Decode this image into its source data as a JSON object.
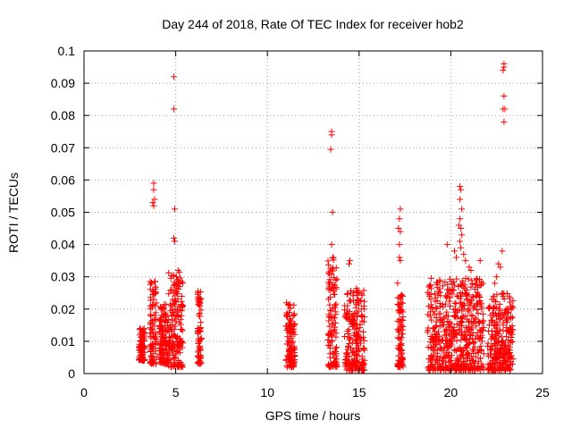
{
  "chart_data": {
    "type": "scatter",
    "title": "Day 244 of 2018, Rate Of TEC Index for receiver hob2",
    "xlabel": "GPS time / hours",
    "ylabel": "ROTI / TECUs",
    "xlim": [
      0,
      25
    ],
    "ylim": [
      0,
      0.1
    ],
    "xticks": [
      0,
      5,
      10,
      15,
      20,
      25
    ],
    "yticks": [
      0,
      0.01,
      0.02,
      0.03,
      0.04,
      0.05,
      0.06,
      0.07,
      0.08,
      0.09,
      0.1
    ],
    "xtick_labels": [
      "0",
      "5",
      "10",
      "15",
      "20",
      "25"
    ],
    "ytick_labels": [
      "0",
      "0.01",
      "0.02",
      "0.03",
      "0.04",
      "0.05",
      "0.06",
      "0.07",
      "0.08",
      "0.09",
      "0.1"
    ],
    "grid": true,
    "marker": "+",
    "color": "#ff0000",
    "clusters": [
      {
        "x_start": 3.0,
        "x_end": 3.3,
        "y_min": 0.004,
        "y_max": 0.014
      },
      {
        "x_start": 3.6,
        "x_end": 3.95,
        "y_min": 0.003,
        "y_max": 0.03
      },
      {
        "x_start": 4.1,
        "x_end": 4.6,
        "y_min": 0.003,
        "y_max": 0.022
      },
      {
        "x_start": 4.6,
        "x_end": 5.4,
        "y_min": 0.002,
        "y_max": 0.032
      },
      {
        "x_start": 6.2,
        "x_end": 6.4,
        "y_min": 0.003,
        "y_max": 0.026
      },
      {
        "x_start": 11.0,
        "x_end": 11.5,
        "y_min": 0.002,
        "y_max": 0.022
      },
      {
        "x_start": 13.3,
        "x_end": 13.8,
        "y_min": 0.002,
        "y_max": 0.036
      },
      {
        "x_start": 14.2,
        "x_end": 15.3,
        "y_min": 0.001,
        "y_max": 0.027
      },
      {
        "x_start": 17.1,
        "x_end": 17.4,
        "y_min": 0.002,
        "y_max": 0.025
      },
      {
        "x_start": 18.7,
        "x_end": 21.8,
        "y_min": 0.001,
        "y_max": 0.03
      },
      {
        "x_start": 22.0,
        "x_end": 23.4,
        "y_min": 0.001,
        "y_max": 0.025
      }
    ],
    "outliers": [
      {
        "x": 3.8,
        "y": 0.059
      },
      {
        "x": 3.8,
        "y": 0.057
      },
      {
        "x": 3.85,
        "y": 0.054
      },
      {
        "x": 3.8,
        "y": 0.052
      },
      {
        "x": 3.75,
        "y": 0.053
      },
      {
        "x": 4.9,
        "y": 0.092
      },
      {
        "x": 4.9,
        "y": 0.082
      },
      {
        "x": 4.95,
        "y": 0.051
      },
      {
        "x": 4.9,
        "y": 0.042
      },
      {
        "x": 4.95,
        "y": 0.041
      },
      {
        "x": 13.5,
        "y": 0.075
      },
      {
        "x": 13.5,
        "y": 0.074
      },
      {
        "x": 13.45,
        "y": 0.0695
      },
      {
        "x": 13.55,
        "y": 0.05
      },
      {
        "x": 13.5,
        "y": 0.04
      },
      {
        "x": 13.6,
        "y": 0.036
      },
      {
        "x": 14.5,
        "y": 0.035
      },
      {
        "x": 14.45,
        "y": 0.034
      },
      {
        "x": 17.25,
        "y": 0.051
      },
      {
        "x": 17.2,
        "y": 0.048
      },
      {
        "x": 17.15,
        "y": 0.045
      },
      {
        "x": 17.25,
        "y": 0.044
      },
      {
        "x": 17.2,
        "y": 0.04
      },
      {
        "x": 17.2,
        "y": 0.036
      },
      {
        "x": 17.25,
        "y": 0.035
      },
      {
        "x": 17.1,
        "y": 0.028
      },
      {
        "x": 19.8,
        "y": 0.04
      },
      {
        "x": 20.3,
        "y": 0.036
      },
      {
        "x": 20.2,
        "y": 0.038
      },
      {
        "x": 20.5,
        "y": 0.058
      },
      {
        "x": 20.55,
        "y": 0.057
      },
      {
        "x": 20.5,
        "y": 0.054
      },
      {
        "x": 20.6,
        "y": 0.051
      },
      {
        "x": 20.5,
        "y": 0.048
      },
      {
        "x": 20.45,
        "y": 0.046
      },
      {
        "x": 20.55,
        "y": 0.045
      },
      {
        "x": 20.6,
        "y": 0.043
      },
      {
        "x": 20.5,
        "y": 0.041
      },
      {
        "x": 20.55,
        "y": 0.039
      },
      {
        "x": 20.7,
        "y": 0.037
      },
      {
        "x": 20.8,
        "y": 0.035
      },
      {
        "x": 21.0,
        "y": 0.033
      },
      {
        "x": 21.1,
        "y": 0.032
      },
      {
        "x": 21.6,
        "y": 0.035
      },
      {
        "x": 22.6,
        "y": 0.034
      },
      {
        "x": 22.7,
        "y": 0.033
      },
      {
        "x": 22.8,
        "y": 0.038
      },
      {
        "x": 22.5,
        "y": 0.03
      },
      {
        "x": 22.4,
        "y": 0.028
      },
      {
        "x": 22.9,
        "y": 0.096
      },
      {
        "x": 22.9,
        "y": 0.095
      },
      {
        "x": 22.85,
        "y": 0.094
      },
      {
        "x": 22.9,
        "y": 0.086
      },
      {
        "x": 22.85,
        "y": 0.082
      },
      {
        "x": 22.95,
        "y": 0.082
      },
      {
        "x": 22.9,
        "y": 0.078
      }
    ]
  }
}
